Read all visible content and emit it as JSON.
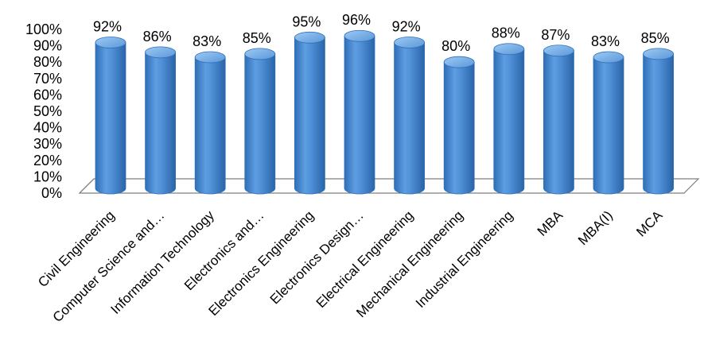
{
  "chart_data": {
    "type": "bar",
    "style": "3d-cylinder",
    "title": "",
    "xlabel": "",
    "ylabel": "",
    "ylim": [
      0,
      100
    ],
    "y_ticks": [
      "0%",
      "10%",
      "20%",
      "30%",
      "40%",
      "50%",
      "60%",
      "70%",
      "80%",
      "90%",
      "100%"
    ],
    "grid": false,
    "legend": "none",
    "colors": {
      "bar": "#4f8fd6",
      "bar_dark": "#2f6fb8",
      "bar_light": "#8cc0f2",
      "floor": "#ffffff",
      "floor_edge": "#7f7f7f"
    },
    "categories": [
      "Civil Engineering",
      "Computer Science and…",
      "Information Technology",
      "Electronics and…",
      "Electronics Engineering",
      "Electronics Design…",
      "Electrical Engineering",
      "Mechanical Engineering",
      "Industrial Engineering",
      "MBA",
      "MBA(I)",
      "MCA"
    ],
    "values": [
      92,
      86,
      83,
      85,
      95,
      96,
      92,
      80,
      88,
      87,
      83,
      85
    ],
    "data_labels": [
      "92%",
      "86%",
      "83%",
      "85%",
      "95%",
      "96%",
      "92%",
      "80%",
      "88%",
      "87%",
      "83%",
      "85%"
    ]
  }
}
